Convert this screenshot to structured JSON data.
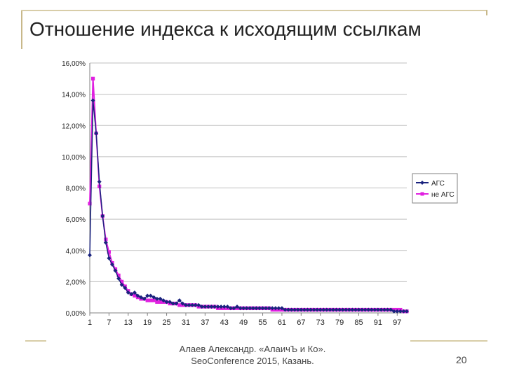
{
  "slide": {
    "title": "Отношение индекса к исходящим ссылкам",
    "footer_line1": "Алаев Александр. «АлаичЪ и Ко».",
    "footer_line2": "SeoConference 2015, Казань.",
    "page_number": "20"
  },
  "colors": {
    "series_afc": "#1a237e",
    "series_noafc": "#e020e0",
    "gridline": "#bfbfbf",
    "frame": "#c8b88a"
  },
  "chart_data": {
    "type": "line",
    "title": "",
    "xlabel": "",
    "ylabel": "",
    "x": [
      1,
      2,
      3,
      4,
      5,
      6,
      7,
      8,
      9,
      10,
      11,
      12,
      13,
      14,
      15,
      16,
      17,
      18,
      19,
      20,
      21,
      22,
      23,
      24,
      25,
      26,
      27,
      28,
      29,
      30,
      31,
      32,
      33,
      34,
      35,
      36,
      37,
      38,
      39,
      40,
      41,
      42,
      43,
      44,
      45,
      46,
      47,
      48,
      49,
      50,
      51,
      52,
      53,
      54,
      55,
      56,
      57,
      58,
      59,
      60,
      61,
      62,
      63,
      64,
      65,
      66,
      67,
      68,
      69,
      70,
      71,
      72,
      73,
      74,
      75,
      76,
      77,
      78,
      79,
      80,
      81,
      82,
      83,
      84,
      85,
      86,
      87,
      88,
      89,
      90,
      91,
      92,
      93,
      94,
      95,
      96,
      97,
      98,
      99,
      100
    ],
    "x_tick_labels": [
      "1",
      "7",
      "13",
      "19",
      "25",
      "31",
      "37",
      "43",
      "49",
      "55",
      "61",
      "67",
      "73",
      "79",
      "85",
      "91",
      "97"
    ],
    "x_tick_values": [
      1,
      7,
      13,
      19,
      25,
      31,
      37,
      43,
      49,
      55,
      61,
      67,
      73,
      79,
      85,
      91,
      97
    ],
    "y_tick_labels": [
      "0,00%",
      "2,00%",
      "4,00%",
      "6,00%",
      "8,00%",
      "10,00%",
      "12,00%",
      "14,00%",
      "16,00%"
    ],
    "y_tick_values": [
      0,
      2,
      4,
      6,
      8,
      10,
      12,
      14,
      16
    ],
    "ylim": [
      0,
      16
    ],
    "xlim": [
      1,
      100
    ],
    "grid": true,
    "legend_position": "right",
    "series": [
      {
        "name": "АГС",
        "marker": "diamond",
        "values": [
          3.7,
          13.6,
          11.5,
          8.4,
          6.2,
          4.5,
          3.5,
          3.1,
          2.7,
          2.2,
          1.8,
          1.6,
          1.3,
          1.2,
          1.3,
          1.1,
          1.0,
          0.9,
          1.1,
          1.1,
          1.0,
          0.9,
          0.9,
          0.8,
          0.7,
          0.7,
          0.6,
          0.6,
          0.8,
          0.6,
          0.5,
          0.5,
          0.5,
          0.5,
          0.5,
          0.4,
          0.4,
          0.4,
          0.4,
          0.4,
          0.4,
          0.4,
          0.4,
          0.4,
          0.3,
          0.3,
          0.4,
          0.3,
          0.3,
          0.3,
          0.3,
          0.3,
          0.3,
          0.3,
          0.3,
          0.3,
          0.3,
          0.3,
          0.3,
          0.3,
          0.3,
          0.2,
          0.2,
          0.2,
          0.2,
          0.2,
          0.2,
          0.2,
          0.2,
          0.2,
          0.2,
          0.2,
          0.2,
          0.2,
          0.2,
          0.2,
          0.2,
          0.2,
          0.2,
          0.2,
          0.2,
          0.2,
          0.2,
          0.2,
          0.2,
          0.2,
          0.2,
          0.2,
          0.2,
          0.2,
          0.2,
          0.2,
          0.2,
          0.2,
          0.2,
          0.1,
          0.1,
          0.1,
          0.1,
          0.1
        ]
      },
      {
        "name": "не АГС",
        "marker": "square",
        "values": [
          7.0,
          15.0,
          11.5,
          8.1,
          6.2,
          4.7,
          3.9,
          3.2,
          2.8,
          2.4,
          2.0,
          1.7,
          1.4,
          1.2,
          1.1,
          1.0,
          0.9,
          0.9,
          0.8,
          0.8,
          0.8,
          0.7,
          0.7,
          0.7,
          0.7,
          0.6,
          0.6,
          0.6,
          0.5,
          0.5,
          0.5,
          0.5,
          0.5,
          0.5,
          0.4,
          0.4,
          0.4,
          0.4,
          0.4,
          0.4,
          0.3,
          0.3,
          0.3,
          0.3,
          0.3,
          0.3,
          0.3,
          0.3,
          0.3,
          0.3,
          0.3,
          0.3,
          0.3,
          0.3,
          0.3,
          0.3,
          0.3,
          0.2,
          0.2,
          0.2,
          0.2,
          0.2,
          0.2,
          0.2,
          0.2,
          0.2,
          0.2,
          0.2,
          0.2,
          0.2,
          0.2,
          0.2,
          0.2,
          0.2,
          0.2,
          0.2,
          0.2,
          0.2,
          0.2,
          0.2,
          0.2,
          0.2,
          0.2,
          0.2,
          0.2,
          0.2,
          0.2,
          0.2,
          0.2,
          0.2,
          0.2,
          0.2,
          0.2,
          0.2,
          0.2,
          0.2,
          0.2,
          0.2,
          0.1,
          0.1
        ]
      }
    ]
  }
}
